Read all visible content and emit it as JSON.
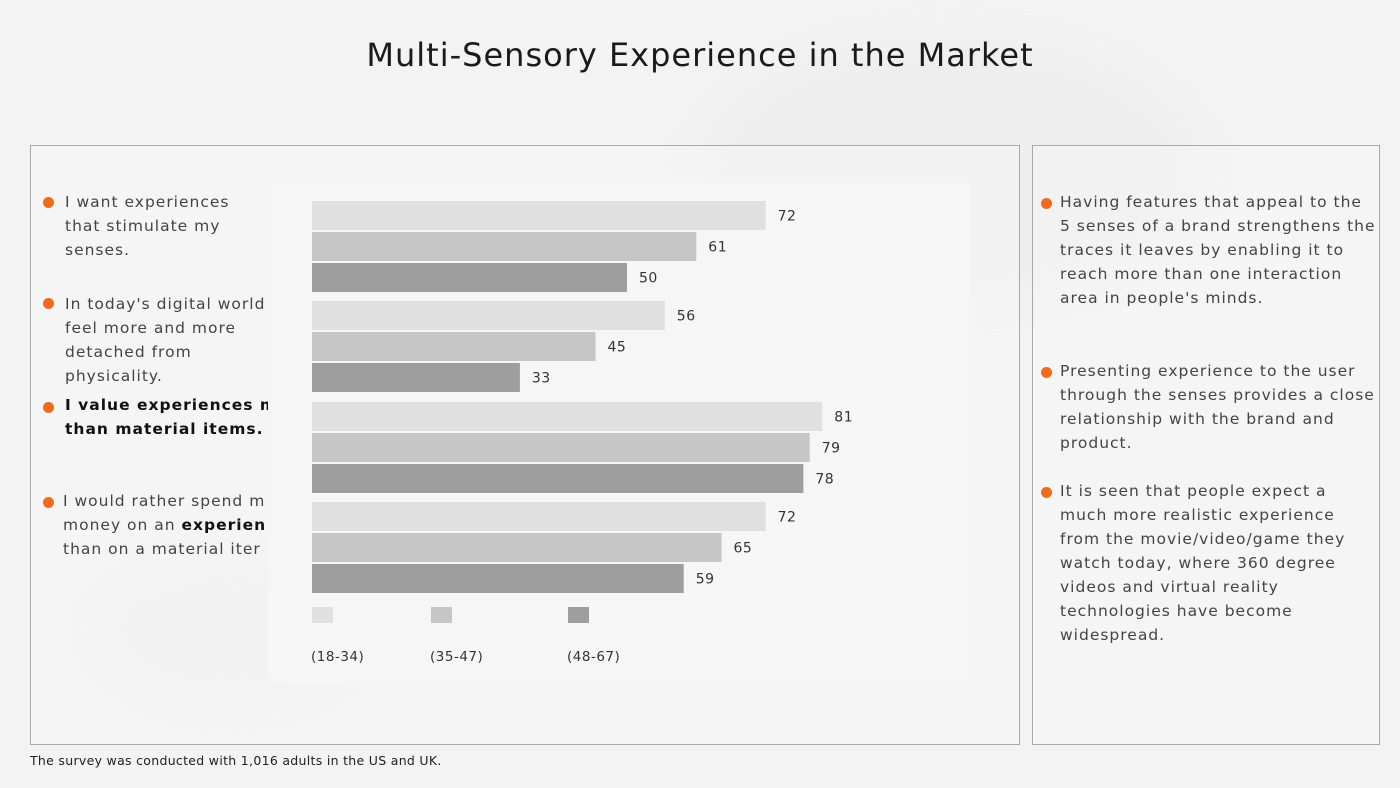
{
  "title": "Multi-Sensory Experience in the Market",
  "footnote": "The survey was conducted with 1,016 adults in the US and UK.",
  "statements": [
    {
      "lines": [
        "I want experiences",
        "that stimulate my",
        "senses."
      ]
    },
    {
      "lines": [
        "In today's digital world",
        "feel more and more",
        "detached from",
        "physicality."
      ]
    },
    {
      "lines": [
        "I value experiences mo",
        "than material items."
      ]
    },
    {
      "parts1": [
        "I would rather spend m"
      ],
      "line2_a": "money on an ",
      "line2_b": "experien",
      "line3": "than on a material iter"
    }
  ],
  "right_points": [
    "Having features that appeal to the 5 senses of a brand strengthens the traces it leaves by enabling it to reach more than one interaction area in people's minds.",
    "Presenting experience to the user through the senses provides a close relationship with the brand and product.",
    "It is seen that people expect a much more realistic experience from the movie/video/game they watch today, where 360 degree videos and virtual reality technologies have become widespread."
  ],
  "chart_data": {
    "type": "bar",
    "orientation": "horizontal",
    "categories": [
      "I want experiences that stimulate my senses.",
      "In today's digital world feel more and more detached from physicality.",
      "I value experiences mo than material items.",
      "I would rather spend m money on an experien than on a material iter"
    ],
    "series": [
      {
        "name": "(18-34)",
        "color": "#e0e0e0",
        "values": [
          72,
          56,
          81,
          72
        ]
      },
      {
        "name": "(35-47)",
        "color": "#c6c6c6",
        "values": [
          61,
          45,
          79,
          65
        ]
      },
      {
        "name": "(48-67)",
        "color": "#9e9e9e",
        "values": [
          50,
          33,
          78,
          59
        ]
      }
    ],
    "xlim": [
      0,
      100
    ],
    "legend_position": "bottom-left"
  },
  "colors": {
    "accent": "#f26a1b"
  }
}
